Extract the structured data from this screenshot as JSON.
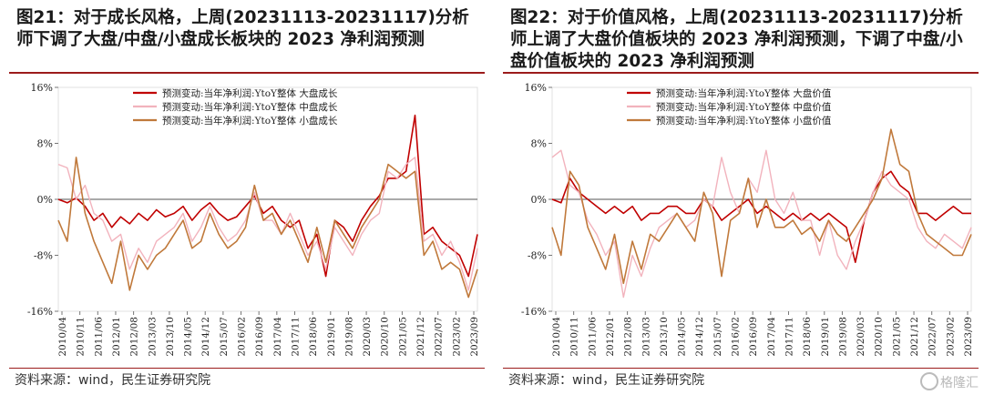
{
  "charts": [
    {
      "title": "图21：对于成长风格，上周(20231113-20231117)分析师下调了大盘/中盘/小盘成长板块的 2023 净利润预测",
      "source": "资料来源：wind，民生证券研究院"
    },
    {
      "title": "图22：对于价值风格，上周(20231113-20231117)分析师上调了大盘价值板块的 2023 净利润预测，下调了中盘/小盘价值板块的 2023 净利润预测",
      "source": "资料来源：wind，民生证券研究院"
    }
  ],
  "watermark": "格隆汇",
  "chart_data": [
    {
      "type": "line",
      "title": "图21：对于成长风格，上周(20231113-20231117)分析师下调了大盘/中盘/小盘成长板块的 2023 净利润预测",
      "xlabel": "",
      "ylabel": "",
      "ylim": [
        -0.16,
        0.16
      ],
      "yticks": [
        "16%",
        "8%",
        "0%",
        "-8%",
        "-16%"
      ],
      "ytick_values": [
        0.16,
        0.08,
        0,
        -0.08,
        -0.16
      ],
      "x_tick_labels": [
        "2010/04",
        "2010/11",
        "2011/06",
        "2012/01",
        "2012/08",
        "2013/03",
        "2013/10",
        "2014/05",
        "2014/12",
        "2015/07",
        "2016/02",
        "2016/09",
        "2017/04",
        "2017/11",
        "2018/06",
        "2019/01",
        "2019/08",
        "2020/03",
        "2020/10",
        "2021/05",
        "2021/12",
        "2022/07",
        "2023/02",
        "2023/09"
      ],
      "legend_position": "top-center",
      "x": [
        "2010/04",
        "2010/07",
        "2010/11",
        "2011/02",
        "2011/06",
        "2011/09",
        "2012/01",
        "2012/04",
        "2012/08",
        "2012/11",
        "2013/03",
        "2013/06",
        "2013/10",
        "2014/01",
        "2014/05",
        "2014/08",
        "2014/12",
        "2015/03",
        "2015/07",
        "2015/10",
        "2016/02",
        "2016/05",
        "2016/09",
        "2016/12",
        "2017/04",
        "2017/07",
        "2017/11",
        "2018/02",
        "2018/06",
        "2018/09",
        "2019/01",
        "2019/04",
        "2019/08",
        "2019/11",
        "2020/03",
        "2020/06",
        "2020/10",
        "2021/01",
        "2021/05",
        "2021/08",
        "2021/12",
        "2022/03",
        "2022/07",
        "2022/10",
        "2023/02",
        "2023/05",
        "2023/09",
        "2023/11"
      ],
      "series": [
        {
          "name": "预测变动:当年净利润:YtoY整体 大盘成长",
          "color": "#c00000",
          "width": 1.6,
          "values": [
            0.0,
            -0.005,
            0.002,
            -0.01,
            -0.03,
            -0.02,
            -0.04,
            -0.025,
            -0.035,
            -0.02,
            -0.03,
            -0.015,
            -0.025,
            -0.02,
            -0.01,
            -0.03,
            -0.015,
            -0.005,
            -0.02,
            -0.03,
            -0.025,
            -0.01,
            0.005,
            -0.02,
            -0.01,
            -0.03,
            -0.04,
            -0.03,
            -0.07,
            -0.05,
            -0.11,
            -0.03,
            -0.04,
            -0.06,
            -0.03,
            -0.01,
            0.005,
            0.03,
            0.03,
            0.04,
            0.12,
            -0.05,
            -0.04,
            -0.06,
            -0.07,
            -0.08,
            -0.11,
            -0.05
          ]
        },
        {
          "name": "预测变动:当年净利润:YtoY整体 中盘成长",
          "color": "#f2b3bd",
          "width": 1.4,
          "values": [
            0.05,
            0.045,
            0.0,
            0.02,
            -0.02,
            -0.03,
            -0.06,
            -0.05,
            -0.1,
            -0.07,
            -0.09,
            -0.06,
            -0.05,
            -0.04,
            -0.02,
            -0.06,
            -0.04,
            -0.01,
            -0.04,
            -0.06,
            -0.05,
            -0.03,
            0.01,
            -0.03,
            -0.03,
            -0.05,
            -0.02,
            -0.05,
            -0.08,
            -0.06,
            -0.1,
            -0.04,
            -0.06,
            -0.08,
            -0.05,
            -0.03,
            -0.02,
            0.04,
            0.03,
            0.05,
            0.06,
            -0.06,
            -0.05,
            -0.08,
            -0.06,
            -0.09,
            -0.13,
            -0.07
          ]
        },
        {
          "name": "预测变动:当年净利润:YtoY整体 小盘成长",
          "color": "#c0793b",
          "width": 1.6,
          "values": [
            -0.03,
            -0.06,
            0.06,
            -0.02,
            -0.06,
            -0.09,
            -0.12,
            -0.06,
            -0.13,
            -0.08,
            -0.1,
            -0.08,
            -0.07,
            -0.05,
            -0.03,
            -0.07,
            -0.06,
            -0.02,
            -0.05,
            -0.07,
            -0.06,
            -0.04,
            0.02,
            -0.03,
            -0.02,
            -0.05,
            -0.03,
            -0.06,
            -0.09,
            -0.04,
            -0.09,
            -0.03,
            -0.05,
            -0.07,
            -0.04,
            -0.02,
            0.0,
            0.05,
            0.04,
            0.03,
            0.04,
            -0.08,
            -0.06,
            -0.1,
            -0.09,
            -0.1,
            -0.14,
            -0.1
          ]
        }
      ]
    },
    {
      "type": "line",
      "title": "图22：对于价值风格，上周(20231113-20231117)分析师上调了大盘价值板块的 2023 净利润预测，下调了中盘/小盘价值板块的 2023 净利润预测",
      "xlabel": "",
      "ylabel": "",
      "ylim": [
        -0.16,
        0.16
      ],
      "yticks": [
        "16%",
        "8%",
        "0%",
        "-8%",
        "-16%"
      ],
      "ytick_values": [
        0.16,
        0.08,
        0,
        -0.08,
        -0.16
      ],
      "x_tick_labels": [
        "2010/04",
        "2010/11",
        "2011/06",
        "2012/01",
        "2012/08",
        "2013/03",
        "2013/10",
        "2014/05",
        "2014/12",
        "2015/07",
        "2016/02",
        "2016/09",
        "2017/04",
        "2017/11",
        "2018/06",
        "2019/01",
        "2019/08",
        "2020/03",
        "2020/10",
        "2021/05",
        "2021/12",
        "2022/07",
        "2023/02",
        "2023/09"
      ],
      "legend_position": "top-center",
      "x": [
        "2010/04",
        "2010/07",
        "2010/11",
        "2011/02",
        "2011/06",
        "2011/09",
        "2012/01",
        "2012/04",
        "2012/08",
        "2012/11",
        "2013/03",
        "2013/06",
        "2013/10",
        "2014/01",
        "2014/05",
        "2014/08",
        "2014/12",
        "2015/03",
        "2015/07",
        "2015/10",
        "2016/02",
        "2016/05",
        "2016/09",
        "2016/12",
        "2017/04",
        "2017/07",
        "2017/11",
        "2018/02",
        "2018/06",
        "2018/09",
        "2019/01",
        "2019/04",
        "2019/08",
        "2019/11",
        "2020/03",
        "2020/06",
        "2020/10",
        "2021/01",
        "2021/05",
        "2021/08",
        "2021/12",
        "2022/03",
        "2022/07",
        "2022/10",
        "2023/02",
        "2023/05",
        "2023/09",
        "2023/11"
      ],
      "series": [
        {
          "name": "预测变动:当年净利润:YtoY整体 大盘价值",
          "color": "#c00000",
          "width": 1.6,
          "values": [
            0.0,
            -0.005,
            0.03,
            0.01,
            0.0,
            -0.01,
            -0.02,
            -0.01,
            -0.02,
            -0.01,
            -0.03,
            -0.02,
            -0.02,
            -0.01,
            -0.01,
            -0.02,
            -0.02,
            0.0,
            -0.01,
            -0.03,
            -0.02,
            -0.01,
            0.0,
            -0.02,
            -0.01,
            -0.02,
            -0.03,
            -0.02,
            -0.03,
            -0.02,
            -0.03,
            -0.02,
            -0.03,
            -0.04,
            -0.09,
            -0.03,
            0.01,
            0.03,
            0.04,
            0.02,
            0.01,
            -0.02,
            -0.02,
            -0.03,
            -0.02,
            -0.01,
            -0.02,
            -0.02
          ]
        },
        {
          "name": "预测变动:当年净利润:YtoY整体 中盘价值",
          "color": "#f2b3bd",
          "width": 1.4,
          "values": [
            0.06,
            0.07,
            0.02,
            0.01,
            -0.03,
            -0.05,
            -0.08,
            -0.06,
            -0.14,
            -0.08,
            -0.11,
            -0.07,
            -0.04,
            -0.03,
            -0.02,
            -0.04,
            -0.03,
            0.0,
            -0.01,
            0.06,
            0.01,
            -0.02,
            0.03,
            0.01,
            0.07,
            0.0,
            -0.02,
            0.01,
            -0.03,
            -0.03,
            -0.08,
            -0.03,
            -0.08,
            -0.1,
            -0.06,
            -0.03,
            0.01,
            0.04,
            0.02,
            0.01,
            0.0,
            -0.04,
            -0.06,
            -0.07,
            -0.05,
            -0.06,
            -0.07,
            -0.04
          ]
        },
        {
          "name": "预测变动:当年净利润:YtoY整体 小盘价值",
          "color": "#c0793b",
          "width": 1.6,
          "values": [
            -0.04,
            -0.08,
            0.04,
            0.02,
            -0.04,
            -0.07,
            -0.1,
            -0.05,
            -0.12,
            -0.06,
            -0.1,
            -0.05,
            -0.06,
            -0.04,
            -0.02,
            -0.04,
            -0.06,
            0.01,
            -0.02,
            -0.11,
            -0.03,
            -0.02,
            0.03,
            -0.04,
            0.0,
            -0.04,
            -0.04,
            -0.03,
            -0.05,
            -0.04,
            -0.06,
            -0.03,
            -0.05,
            -0.06,
            -0.04,
            -0.02,
            0.0,
            0.03,
            0.1,
            0.05,
            0.04,
            -0.02,
            -0.05,
            -0.06,
            -0.07,
            -0.08,
            -0.08,
            -0.05
          ]
        }
      ]
    }
  ]
}
